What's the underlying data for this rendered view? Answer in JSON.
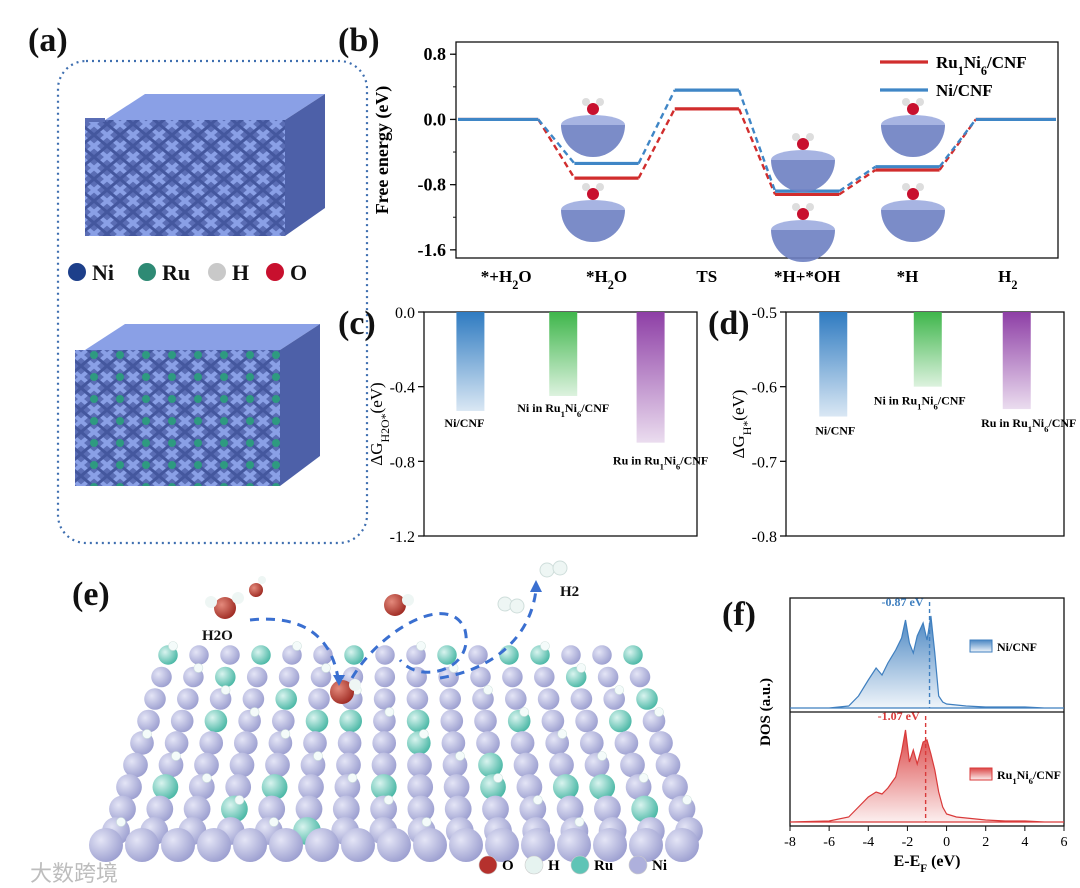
{
  "panels": {
    "a": "(a)",
    "b": "(b)",
    "c": "(c)",
    "d": "(d)",
    "e": "(e)",
    "f": "(f)"
  },
  "legend_a": [
    {
      "label": "Ni",
      "color": "#1d3f8a"
    },
    {
      "label": "Ru",
      "color": "#2e8a74"
    },
    {
      "label": "H",
      "color": "#c9c9c9"
    },
    {
      "label": "O",
      "color": "#c8102e"
    }
  ],
  "legend_e": [
    {
      "label": "O",
      "color": "#b5312d"
    },
    {
      "label": "H",
      "color": "#e6f3f0"
    },
    {
      "label": "Ru",
      "color": "#5fc4b6"
    },
    {
      "label": "Ni",
      "color": "#aeb0dc"
    }
  ],
  "e_labels": {
    "h2o": "H2O",
    "h2": "H2"
  },
  "watermark": "大数跨境",
  "chart_data": [
    {
      "panel": "b",
      "type": "line",
      "ylabel": "Free energy (eV)",
      "ylim": [
        -1.7,
        0.95
      ],
      "yticks": [
        0.8,
        0.0,
        -0.8,
        -1.6
      ],
      "categories": [
        "*+H2O",
        "*H2O",
        "TS",
        "*H+*OH",
        "*H",
        "H2"
      ],
      "series": [
        {
          "name": "Ru1Ni6/CNF",
          "color": "#d12d2d",
          "values": [
            0.0,
            -0.72,
            0.13,
            -0.92,
            -0.62,
            0.0
          ]
        },
        {
          "name": "Ni/CNF",
          "color": "#3f86c6",
          "values": [
            0.0,
            -0.54,
            0.36,
            -0.88,
            -0.58,
            0.0
          ]
        }
      ],
      "legend_position": "top-right"
    },
    {
      "panel": "c",
      "type": "bar",
      "ylabel": "ΔGH2O*(eV)",
      "ylim": [
        -1.2,
        0.0
      ],
      "yticks": [
        0.0,
        -0.4,
        -0.8,
        -1.2
      ],
      "categories": [
        "Ni/CNF",
        "Ni in Ru1Ni6/CNF",
        "Ru in Ru1Ni6/CNF"
      ],
      "values": [
        -0.53,
        -0.45,
        -0.7
      ],
      "colors": [
        "#2f7bc1",
        "#3fb64b",
        "#8e3fa6"
      ]
    },
    {
      "panel": "d",
      "type": "bar",
      "ylabel": "ΔGH*(eV)",
      "ylim": [
        -0.8,
        -0.5
      ],
      "yticks": [
        -0.5,
        -0.6,
        -0.7,
        -0.8
      ],
      "categories": [
        "Ni/CNF",
        "Ni in Ru1Ni6/CNF",
        "Ru in Ru1Ni6/CNF"
      ],
      "values": [
        -0.64,
        -0.6,
        -0.63
      ],
      "colors": [
        "#2f7bc1",
        "#3fb64b",
        "#8e3fa6"
      ]
    },
    {
      "panel": "f",
      "type": "area",
      "xlabel": "E-EF (eV)",
      "ylabel": "DOS (a.u.)",
      "xlim": [
        -8,
        6
      ],
      "xticks": [
        -8,
        -6,
        -4,
        -2,
        0,
        2,
        4,
        6
      ],
      "series": [
        {
          "name": "Ni/CNF",
          "color": "#3f7fbf",
          "d_band_center": -0.87,
          "annotation": "-0.87 eV",
          "x": [
            -8,
            -6,
            -5,
            -4.5,
            -4,
            -3.6,
            -3.3,
            -3,
            -2.6,
            -2.3,
            -2.1,
            -1.9,
            -1.7,
            -1.5,
            -1.2,
            -1.0,
            -0.8,
            -0.6,
            -0.4,
            -0.2,
            0,
            0.5,
            1,
            2,
            3,
            4,
            5,
            6
          ],
          "y": [
            0.0,
            0.0,
            0.02,
            0.12,
            0.28,
            0.4,
            0.33,
            0.45,
            0.58,
            0.7,
            0.88,
            0.65,
            0.55,
            0.72,
            0.85,
            0.68,
            0.92,
            0.55,
            0.12,
            0.06,
            0.04,
            0.03,
            0.02,
            0.01,
            0.01,
            0.01,
            0.0,
            0.0
          ]
        },
        {
          "name": "Ru1Ni6/CNF",
          "color": "#d93a3a",
          "d_band_center": -1.07,
          "annotation": "-1.07 eV",
          "x": [
            -8,
            -6,
            -5,
            -4.5,
            -4,
            -3.6,
            -3.3,
            -3,
            -2.6,
            -2.3,
            -2.1,
            -1.9,
            -1.7,
            -1.5,
            -1.2,
            -1.0,
            -0.8,
            -0.6,
            -0.4,
            -0.2,
            0,
            0.5,
            1,
            2,
            3,
            4,
            5,
            6
          ],
          "y": [
            0.0,
            0.01,
            0.05,
            0.15,
            0.25,
            0.3,
            0.28,
            0.34,
            0.45,
            0.7,
            0.92,
            0.6,
            0.72,
            0.58,
            0.8,
            0.82,
            0.68,
            0.52,
            0.3,
            0.15,
            0.08,
            0.05,
            0.04,
            0.02,
            0.01,
            0.01,
            0.0,
            0.0
          ]
        }
      ]
    }
  ]
}
